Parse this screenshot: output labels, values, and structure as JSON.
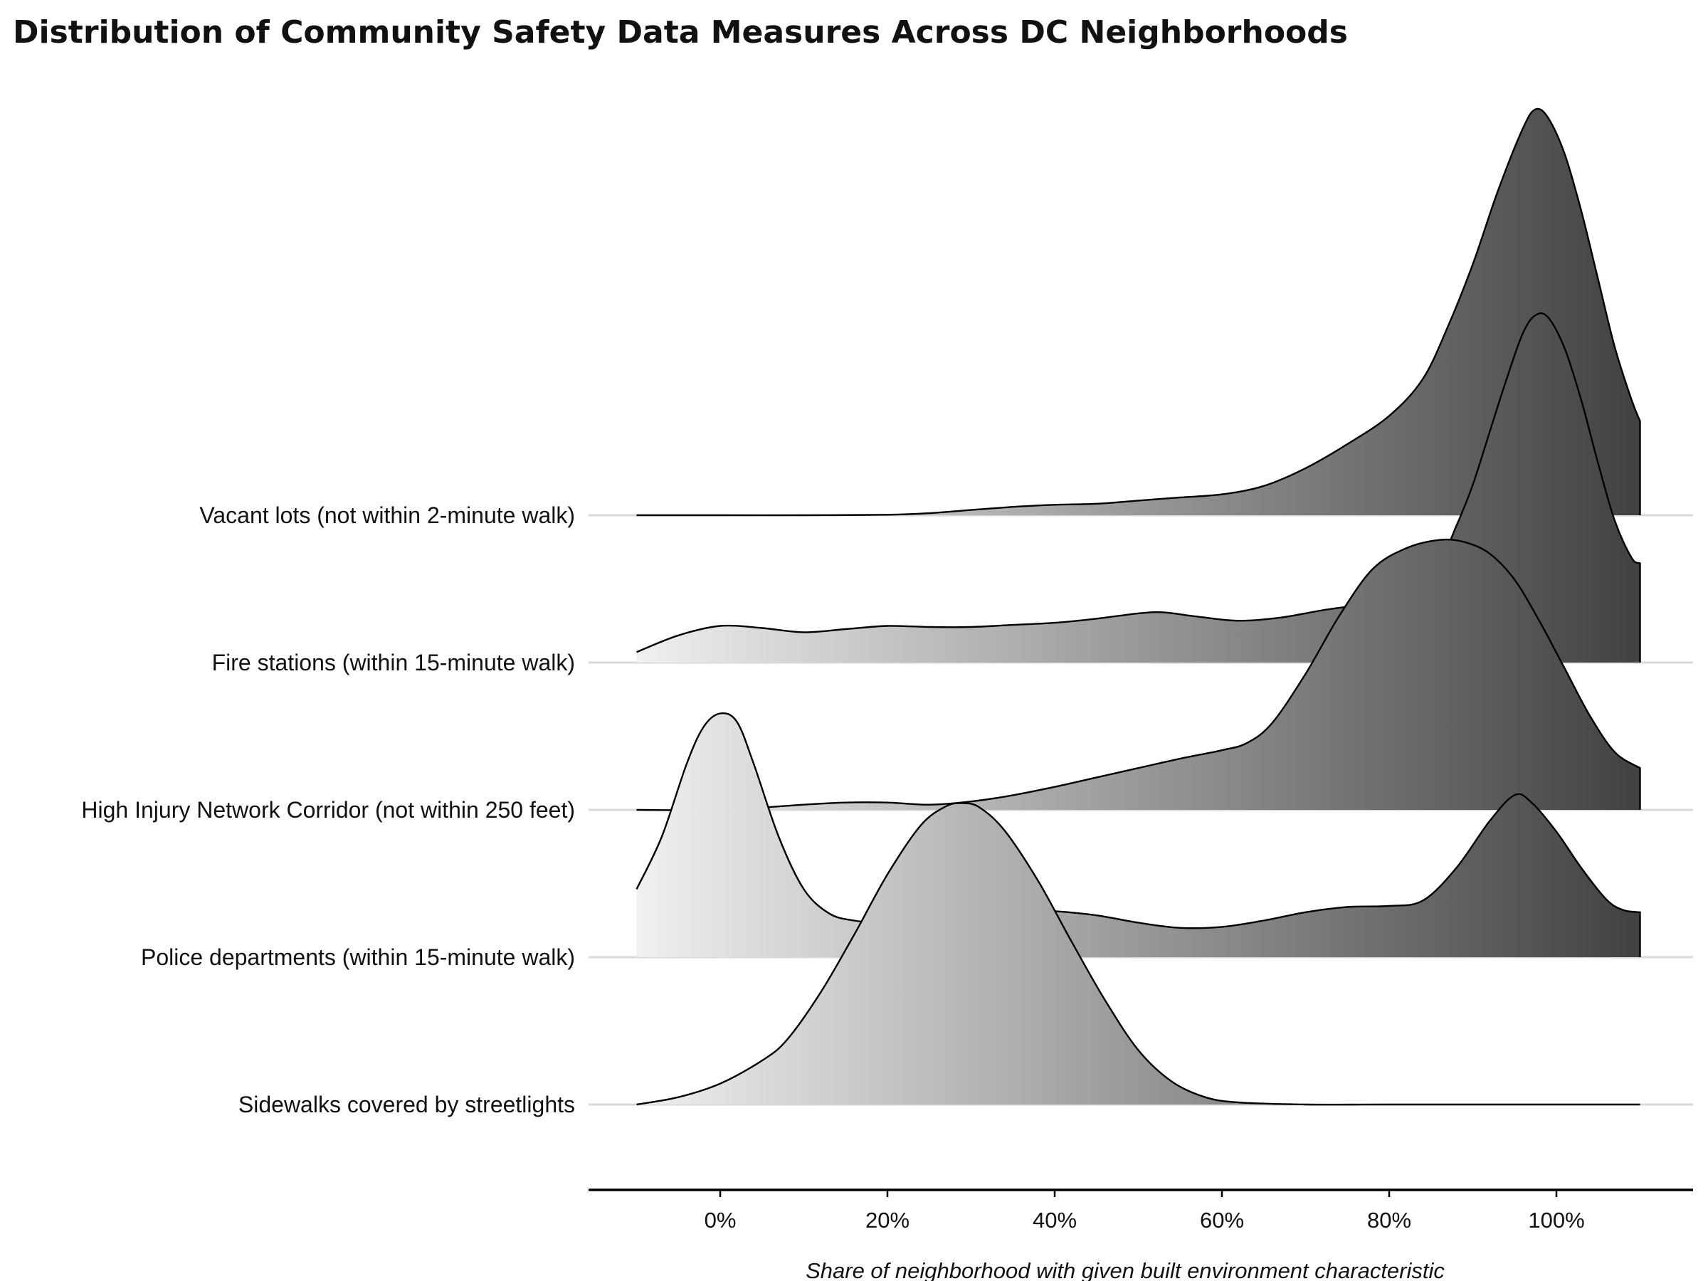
{
  "chart_data": {
    "type": "ridgeline",
    "title": "Distribution of Community Safety Data Measures Across DC Neighborhoods",
    "xlabel": "Share of neighborhood with given built environment characteristic",
    "ylabel": "",
    "xlim": [
      -15,
      115
    ],
    "x_domain": [
      -10,
      110
    ],
    "ticks": [
      {
        "value": 0,
        "label": "0%"
      },
      {
        "value": 20,
        "label": "20%"
      },
      {
        "value": 40,
        "label": "40%"
      },
      {
        "value": 60,
        "label": "60%"
      },
      {
        "value": 80,
        "label": "80%"
      },
      {
        "value": 100,
        "label": "100%"
      }
    ],
    "fill_gradient": [
      "#f0f0f0",
      "#414141"
    ],
    "categories": [
      "Vacant lots (not within 2-minute walk)",
      "Fire stations (within 15-minute walk)",
      "High Injury Network Corridor (not within 250 feet)",
      "Police departments (within 15-minute walk)",
      "Sidewalks covered by streetlights"
    ],
    "series": [
      {
        "category": "Vacant lots (not within 2-minute walk)",
        "points": [
          [
            -10,
            0
          ],
          [
            0,
            0
          ],
          [
            10,
            0
          ],
          [
            20,
            0.005
          ],
          [
            25,
            0.02
          ],
          [
            30,
            0.05
          ],
          [
            35,
            0.08
          ],
          [
            40,
            0.1
          ],
          [
            45,
            0.11
          ],
          [
            50,
            0.14
          ],
          [
            55,
            0.17
          ],
          [
            60,
            0.2
          ],
          [
            65,
            0.28
          ],
          [
            70,
            0.45
          ],
          [
            75,
            0.68
          ],
          [
            80,
            0.95
          ],
          [
            84,
            1.3
          ],
          [
            87,
            1.8
          ],
          [
            90,
            2.4
          ],
          [
            93,
            3.1
          ],
          [
            96,
            3.7
          ],
          [
            97.5,
            3.88
          ],
          [
            99,
            3.8
          ],
          [
            101,
            3.45
          ],
          [
            103,
            2.9
          ],
          [
            105,
            2.25
          ],
          [
            107,
            1.6
          ],
          [
            109,
            1.1
          ],
          [
            110,
            0.9
          ]
        ]
      },
      {
        "category": "Fire stations (within 15-minute walk)",
        "points": [
          [
            -10,
            0.1
          ],
          [
            -5,
            0.26
          ],
          [
            0,
            0.35
          ],
          [
            5,
            0.33
          ],
          [
            10,
            0.29
          ],
          [
            15,
            0.32
          ],
          [
            20,
            0.35
          ],
          [
            25,
            0.34
          ],
          [
            30,
            0.34
          ],
          [
            35,
            0.36
          ],
          [
            40,
            0.38
          ],
          [
            45,
            0.42
          ],
          [
            50,
            0.47
          ],
          [
            53,
            0.48
          ],
          [
            57,
            0.44
          ],
          [
            62,
            0.4
          ],
          [
            67,
            0.43
          ],
          [
            72,
            0.5
          ],
          [
            77,
            0.56
          ],
          [
            82,
            0.66
          ],
          [
            86,
            0.97
          ],
          [
            88,
            1.3
          ],
          [
            90,
            1.7
          ],
          [
            92,
            2.2
          ],
          [
            94,
            2.7
          ],
          [
            96,
            3.15
          ],
          [
            97.5,
            3.32
          ],
          [
            99,
            3.3
          ],
          [
            101,
            3.0
          ],
          [
            103,
            2.5
          ],
          [
            105,
            1.9
          ],
          [
            107,
            1.35
          ],
          [
            109,
            1.0
          ],
          [
            110,
            0.95
          ]
        ]
      },
      {
        "category": "High Injury Network Corridor (not within 250 feet)",
        "points": [
          [
            -10,
            0
          ],
          [
            0,
            0
          ],
          [
            10,
            0.05
          ],
          [
            15,
            0.07
          ],
          [
            20,
            0.07
          ],
          [
            25,
            0.05
          ],
          [
            30,
            0.08
          ],
          [
            35,
            0.14
          ],
          [
            40,
            0.22
          ],
          [
            45,
            0.31
          ],
          [
            50,
            0.4
          ],
          [
            55,
            0.49
          ],
          [
            60,
            0.57
          ],
          [
            63,
            0.64
          ],
          [
            66,
            0.83
          ],
          [
            70,
            1.3
          ],
          [
            74,
            1.85
          ],
          [
            78,
            2.3
          ],
          [
            82,
            2.5
          ],
          [
            86,
            2.58
          ],
          [
            89,
            2.56
          ],
          [
            92,
            2.45
          ],
          [
            95,
            2.2
          ],
          [
            98,
            1.8
          ],
          [
            101,
            1.35
          ],
          [
            104,
            0.9
          ],
          [
            107,
            0.55
          ],
          [
            110,
            0.4
          ]
        ]
      },
      {
        "category": "Police departments (within 15-minute walk)",
        "points": [
          [
            -10,
            0.65
          ],
          [
            -7,
            1.15
          ],
          [
            -4,
            1.85
          ],
          [
            -2,
            2.2
          ],
          [
            0,
            2.33
          ],
          [
            2,
            2.25
          ],
          [
            4,
            1.85
          ],
          [
            7,
            1.15
          ],
          [
            10,
            0.65
          ],
          [
            13,
            0.42
          ],
          [
            16,
            0.35
          ],
          [
            20,
            0.33
          ],
          [
            25,
            0.38
          ],
          [
            30,
            0.43
          ],
          [
            35,
            0.45
          ],
          [
            40,
            0.44
          ],
          [
            45,
            0.4
          ],
          [
            50,
            0.33
          ],
          [
            55,
            0.28
          ],
          [
            60,
            0.29
          ],
          [
            65,
            0.35
          ],
          [
            70,
            0.43
          ],
          [
            75,
            0.48
          ],
          [
            80,
            0.49
          ],
          [
            84,
            0.54
          ],
          [
            88,
            0.85
          ],
          [
            92,
            1.3
          ],
          [
            95,
            1.55
          ],
          [
            97,
            1.48
          ],
          [
            100,
            1.2
          ],
          [
            103,
            0.85
          ],
          [
            106,
            0.55
          ],
          [
            108,
            0.45
          ],
          [
            110,
            0.43
          ]
        ]
      },
      {
        "category": "Sidewalks covered by streetlights",
        "points": [
          [
            -10,
            0
          ],
          [
            -5,
            0.07
          ],
          [
            0,
            0.2
          ],
          [
            5,
            0.42
          ],
          [
            8,
            0.62
          ],
          [
            12,
            1.07
          ],
          [
            16,
            1.62
          ],
          [
            20,
            2.2
          ],
          [
            24,
            2.67
          ],
          [
            27,
            2.85
          ],
          [
            29,
            2.88
          ],
          [
            31,
            2.84
          ],
          [
            34,
            2.62
          ],
          [
            38,
            2.14
          ],
          [
            42,
            1.56
          ],
          [
            46,
            1.0
          ],
          [
            50,
            0.52
          ],
          [
            54,
            0.22
          ],
          [
            58,
            0.07
          ],
          [
            62,
            0.02
          ],
          [
            70,
            0.0
          ],
          [
            80,
            0
          ],
          [
            90,
            0
          ],
          [
            100,
            0
          ],
          [
            110,
            0
          ]
        ]
      }
    ]
  }
}
